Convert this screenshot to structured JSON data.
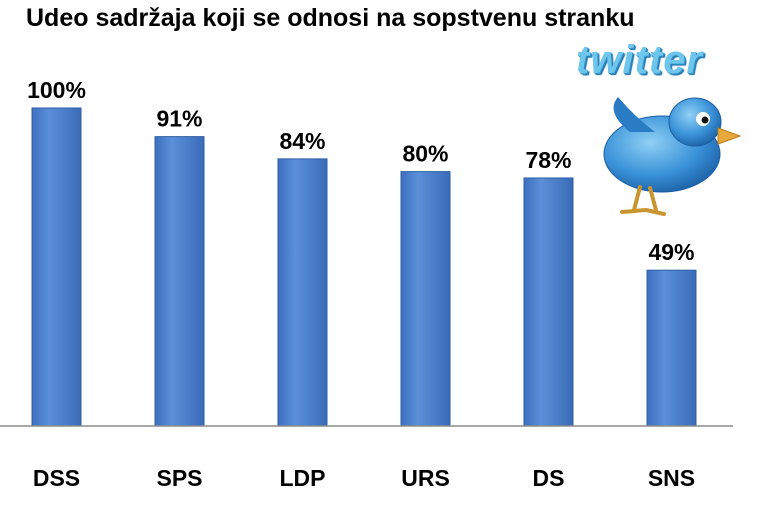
{
  "title": "Udeo sadržaja koji se odnosi na sopstvenu stranku",
  "logo": {
    "text": "twitter"
  },
  "colors": {
    "bar": "#4a7ecb",
    "bar_edge": "#2f5fa8",
    "axis": "#8c8c8c",
    "bird": "#3a92d8"
  },
  "chart_data": {
    "type": "bar",
    "title": "Udeo sadržaja koji se odnosi na sopstvenu stranku",
    "categories": [
      "DSS",
      "SPS",
      "LDP",
      "URS",
      "DS",
      "SNS"
    ],
    "values": [
      100,
      91,
      84,
      80,
      78,
      49
    ],
    "value_labels": [
      "100%",
      "91%",
      "84%",
      "80%",
      "78%",
      "49%"
    ],
    "xlabel": "",
    "ylabel": "",
    "ylim": [
      0,
      100
    ],
    "grid": false,
    "legend": "none"
  }
}
